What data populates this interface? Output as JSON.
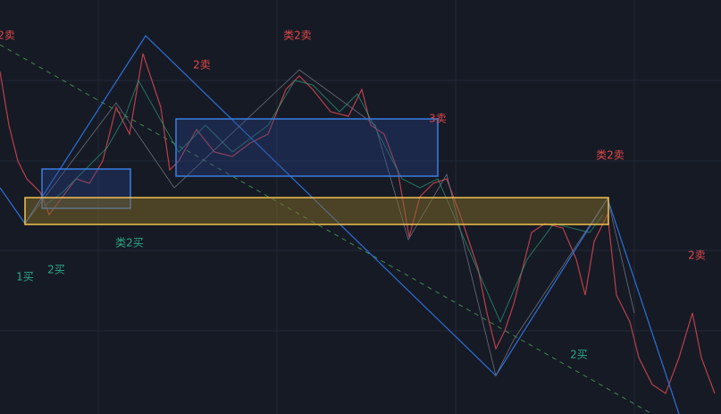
{
  "annotations": [
    {
      "text": "2卖",
      "kind": "sell"
    },
    {
      "text": "类2卖",
      "kind": "sell"
    },
    {
      "text": "2卖",
      "kind": "sell"
    },
    {
      "text": "3卖",
      "kind": "sell"
    },
    {
      "text": "类2卖",
      "kind": "sell"
    },
    {
      "text": "2卖",
      "kind": "sell"
    },
    {
      "text": "1买",
      "kind": "buy"
    },
    {
      "text": "2买",
      "kind": "buy"
    },
    {
      "text": "类2买",
      "kind": "buy"
    },
    {
      "text": "2买",
      "kind": "buy"
    }
  ]
}
